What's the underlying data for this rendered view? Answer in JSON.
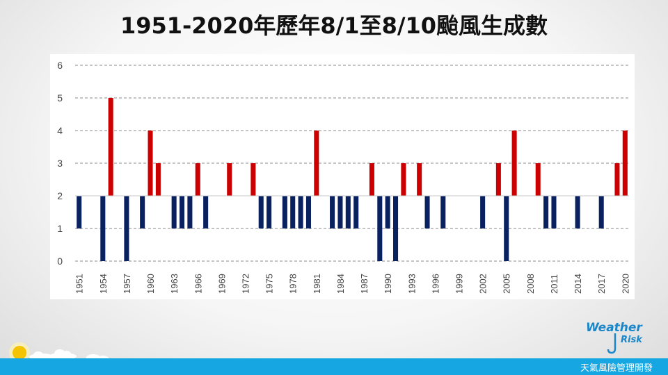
{
  "title": "1951-2020年歷年8/1至8/10颱風生成數",
  "chart_data": {
    "type": "bar",
    "baseline": 2,
    "ylim": [
      0,
      6
    ],
    "yticks": [
      0,
      1,
      2,
      3,
      4,
      5,
      6
    ],
    "grid": true,
    "x": [
      1951,
      1952,
      1953,
      1954,
      1955,
      1956,
      1957,
      1958,
      1959,
      1960,
      1961,
      1962,
      1963,
      1964,
      1965,
      1966,
      1967,
      1968,
      1969,
      1970,
      1971,
      1972,
      1973,
      1974,
      1975,
      1976,
      1977,
      1978,
      1979,
      1980,
      1981,
      1982,
      1983,
      1984,
      1985,
      1986,
      1987,
      1988,
      1989,
      1990,
      1991,
      1992,
      1993,
      1994,
      1995,
      1996,
      1997,
      1998,
      1999,
      2000,
      2001,
      2002,
      2003,
      2004,
      2005,
      2006,
      2007,
      2008,
      2009,
      2010,
      2011,
      2012,
      2013,
      2014,
      2015,
      2016,
      2017,
      2018,
      2019,
      2020
    ],
    "values": [
      1,
      2,
      2,
      0,
      5,
      2,
      0,
      2,
      1,
      4,
      3,
      2,
      1,
      1,
      1,
      3,
      1,
      2,
      2,
      3,
      2,
      2,
      3,
      1,
      1,
      2,
      1,
      1,
      1,
      1,
      4,
      2,
      1,
      1,
      1,
      1,
      2,
      3,
      0,
      1,
      0,
      3,
      2,
      3,
      1,
      2,
      1,
      2,
      2,
      2,
      2,
      1,
      2,
      3,
      0,
      4,
      2,
      2,
      3,
      1,
      1,
      2,
      2,
      1,
      2,
      2,
      1,
      2,
      3,
      4
    ],
    "xtick_labels": [
      "1951",
      "1954",
      "1957",
      "1960",
      "1963",
      "1966",
      "1969",
      "1972",
      "1975",
      "1978",
      "1981",
      "1984",
      "1987",
      "1990",
      "1993",
      "1996",
      "1999",
      "2002",
      "2005",
      "2008",
      "2011",
      "2014",
      "2017",
      "2020"
    ],
    "colors": {
      "above": "#cc0000",
      "below": "#0a2160"
    }
  },
  "logo": {
    "weather": "Weather",
    "risk": "Risk"
  },
  "footer": {
    "text": "天氣風險管理開發"
  }
}
